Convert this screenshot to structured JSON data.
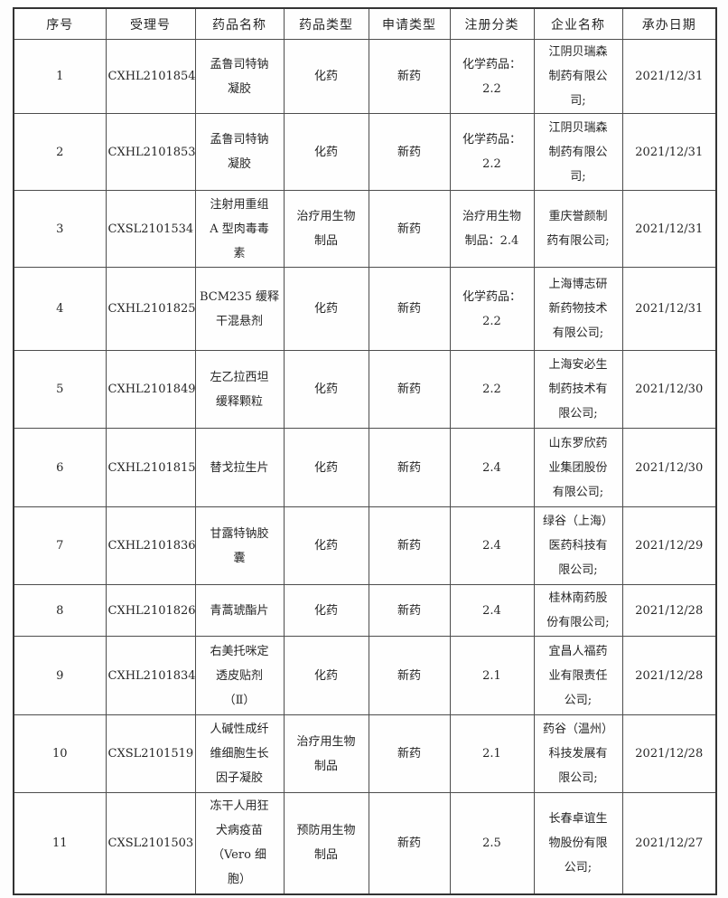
{
  "colors": {
    "border": "#4d4d4d",
    "outer_border": "#333333",
    "text": "#262626",
    "background": "#fdfdfd"
  },
  "table": {
    "column_keys": [
      "no",
      "acceptance-no",
      "drug-name",
      "drug-type",
      "application-type",
      "registration-class",
      "company",
      "date"
    ],
    "columns": [
      "序号",
      "受理号",
      "药品名称",
      "药品类型",
      "申请类型",
      "注册分类",
      "企业名称",
      "承办日期"
    ],
    "rows": [
      [
        "1",
        "CXHL2101854",
        "孟鲁司特钠\n凝胶",
        "化药",
        "新药",
        "化学药品：\n2.2",
        "江阴贝瑞森\n制药有限公\n司;",
        "2021/12/31"
      ],
      [
        "2",
        "CXHL2101853",
        "孟鲁司特钠\n凝胶",
        "化药",
        "新药",
        "化学药品：\n2.2",
        "江阴贝瑞森\n制药有限公\n司;",
        "2021/12/31"
      ],
      [
        "3",
        "CXSL2101534",
        "注射用重组\nA 型肉毒毒\n素",
        "治疗用生物\n制品",
        "新药",
        "治疗用生物\n制品：2.4",
        "重庆誉颜制\n药有限公司;",
        "2021/12/31"
      ],
      [
        "4",
        "CXHL2101825",
        "BCM235 缓释\n干混悬剂",
        "化药",
        "新药",
        "化学药品：\n2.2",
        "上海博志研\n新药物技术\n有限公司;",
        "2021/12/31"
      ],
      [
        "5",
        "CXHL2101849",
        "左乙拉西坦\n缓释颗粒",
        "化药",
        "新药",
        "2.2",
        "上海安必生\n制药技术有\n限公司;",
        "2021/12/30"
      ],
      [
        "6",
        "CXHL2101815",
        "替戈拉生片",
        "化药",
        "新药",
        "2.4",
        "山东罗欣药\n业集团股份\n有限公司;",
        "2021/12/30"
      ],
      [
        "7",
        "CXHL2101836",
        "甘露特钠胶\n囊",
        "化药",
        "新药",
        "2.4",
        "绿谷（上海）\n医药科技有\n限公司;",
        "2021/12/29"
      ],
      [
        "8",
        "CXHL2101826",
        "青蒿琥酯片",
        "化药",
        "新药",
        "2.4",
        "桂林南药股\n份有限公司;",
        "2021/12/28"
      ],
      [
        "9",
        "CXHL2101834",
        "右美托咪定\n透皮贴剂\n（Ⅱ）",
        "化药",
        "新药",
        "2.1",
        "宜昌人福药\n业有限责任\n公司;",
        "2021/12/28"
      ],
      [
        "10",
        "CXSL2101519",
        "人碱性成纤\n维细胞生长\n因子凝胶",
        "治疗用生物\n制品",
        "新药",
        "2.1",
        "药谷（温州）\n科技发展有\n限公司;",
        "2021/12/28"
      ],
      [
        "11",
        "CXSL2101503",
        "冻干人用狂\n犬病疫苗\n（Vero 细\n胞）",
        "预防用生物\n制品",
        "新药",
        "2.5",
        "长春卓谊生\n物股份有限\n公司;",
        "2021/12/27"
      ]
    ]
  }
}
